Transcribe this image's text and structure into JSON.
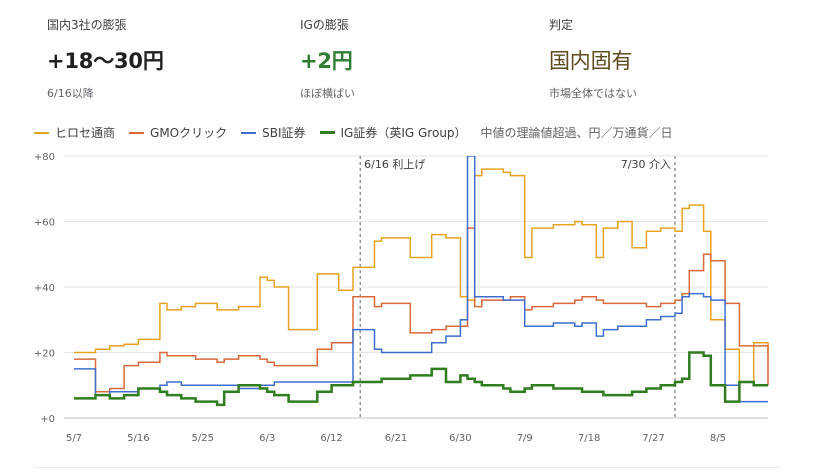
{
  "kpis": [
    {
      "label": "国内3社の膨張",
      "value": "+18〜30円",
      "sub": "6/16以降",
      "color": "#202124"
    },
    {
      "label": "IGの膨張",
      "value": "+2円",
      "sub": "ほぼ横ばい",
      "color": "#2e7d32"
    },
    {
      "label": "判定",
      "value": "国内固有",
      "sub": "市場全体ではない",
      "color": "#5d4a1f"
    }
  ],
  "legend_note": "中値の理論値超過、円／万通貨／日",
  "chart_data": {
    "type": "line",
    "x_start": "5/7",
    "x_end": "8/12",
    "xticks": [
      "5/7",
      "5/16",
      "5/25",
      "6/3",
      "6/12",
      "6/21",
      "6/30",
      "7/9",
      "7/18",
      "7/27",
      "8/5"
    ],
    "yticks": [
      "+0",
      "+20",
      "+40",
      "+60",
      "+80"
    ],
    "ylim": [
      0,
      80
    ],
    "grid": "horizontal",
    "legend_placement": "top",
    "annotations": [
      {
        "x": "6/16",
        "label": "6/16 利上げ"
      },
      {
        "x": "7/30",
        "label": "7/30 介入"
      }
    ],
    "series": [
      {
        "name": "ヒロセ通商",
        "color": "#e6a323",
        "width": 1.5,
        "x": [
          "5/7",
          "5/10",
          "5/12",
          "5/14",
          "5/16",
          "5/19",
          "5/20",
          "5/22",
          "5/24",
          "5/27",
          "5/28",
          "5/30",
          "6/2",
          "6/3",
          "6/4",
          "6/6",
          "6/10",
          "6/12",
          "6/13",
          "6/15",
          "6/18",
          "6/19",
          "6/23",
          "6/26",
          "6/28",
          "6/30",
          "7/1",
          "7/2",
          "7/3",
          "7/6",
          "7/7",
          "7/9",
          "7/10",
          "7/13",
          "7/16",
          "7/17",
          "7/19",
          "7/20",
          "7/22",
          "7/24",
          "7/26",
          "7/28",
          "7/30",
          "7/31",
          "8/1",
          "8/3",
          "8/4",
          "8/6",
          "8/8",
          "8/10",
          "8/12"
        ],
        "y": [
          20,
          21,
          22,
          22.5,
          24,
          35,
          33,
          34,
          35,
          33,
          33,
          34,
          43,
          42,
          40,
          27,
          44,
          44,
          39,
          46,
          54,
          55,
          49,
          56,
          55,
          37,
          36,
          74,
          76,
          75,
          74,
          49,
          58,
          59,
          60,
          59,
          49,
          58,
          60,
          52,
          57,
          58,
          57,
          64,
          65,
          57,
          30,
          21,
          11,
          23,
          19
        ]
      },
      {
        "name": "GMOクリック",
        "color": "#d9683a",
        "width": 1.5,
        "x": [
          "5/7",
          "5/10",
          "5/12",
          "5/14",
          "5/16",
          "5/19",
          "5/20",
          "5/22",
          "5/24",
          "5/27",
          "5/28",
          "5/30",
          "6/2",
          "6/3",
          "6/4",
          "6/6",
          "6/10",
          "6/12",
          "6/13",
          "6/15",
          "6/18",
          "6/19",
          "6/23",
          "6/26",
          "6/28",
          "6/30",
          "7/1",
          "7/2",
          "7/3",
          "7/6",
          "7/7",
          "7/9",
          "7/10",
          "7/13",
          "7/16",
          "7/17",
          "7/19",
          "7/20",
          "7/22",
          "7/24",
          "7/26",
          "7/28",
          "7/30",
          "7/31",
          "8/1",
          "8/3",
          "8/4",
          "8/6",
          "8/8",
          "8/10",
          "8/12"
        ],
        "y": [
          18,
          8,
          9,
          16,
          17,
          20,
          19,
          19,
          18,
          17,
          18,
          19,
          18,
          17,
          16,
          16,
          21,
          23,
          23,
          37,
          34,
          35,
          26,
          27,
          28,
          28,
          58,
          34,
          36,
          36,
          37,
          33,
          34,
          35,
          36,
          37,
          36,
          35,
          35,
          35,
          34,
          35,
          36,
          38,
          45,
          50,
          48,
          35,
          22,
          22,
          10
        ]
      },
      {
        "name": "SBI証券",
        "color": "#3f6ecf",
        "width": 1.5,
        "x": [
          "5/7",
          "5/10",
          "5/12",
          "5/14",
          "5/16",
          "5/19",
          "5/20",
          "5/22",
          "5/24",
          "5/27",
          "5/28",
          "5/30",
          "6/2",
          "6/3",
          "6/4",
          "6/6",
          "6/10",
          "6/12",
          "6/13",
          "6/15",
          "6/18",
          "6/19",
          "6/23",
          "6/26",
          "6/28",
          "6/30",
          "7/1",
          "7/2",
          "7/3",
          "7/6",
          "7/7",
          "7/9",
          "7/10",
          "7/13",
          "7/16",
          "7/17",
          "7/19",
          "7/20",
          "7/22",
          "7/24",
          "7/26",
          "7/28",
          "7/30",
          "7/31",
          "8/1",
          "8/3",
          "8/4",
          "8/6",
          "8/8",
          "8/10",
          "8/12"
        ],
        "y": [
          15,
          7,
          8,
          8,
          9,
          10,
          11,
          10,
          10,
          10,
          10,
          9,
          10,
          10,
          11,
          11,
          11,
          11,
          11,
          27,
          21,
          20,
          20,
          23,
          25,
          30,
          80,
          37,
          37,
          36,
          36,
          28,
          28,
          29,
          28,
          29,
          25,
          27,
          28,
          28,
          30,
          31,
          32,
          37,
          38,
          37,
          36,
          10,
          5,
          5,
          5
        ]
      },
      {
        "name": "IG証券（英IG Group）",
        "color": "#2f7d1f",
        "width": 2.5,
        "x": [
          "5/7",
          "5/10",
          "5/12",
          "5/14",
          "5/16",
          "5/19",
          "5/20",
          "5/22",
          "5/24",
          "5/27",
          "5/28",
          "5/30",
          "6/2",
          "6/3",
          "6/4",
          "6/6",
          "6/10",
          "6/12",
          "6/13",
          "6/15",
          "6/18",
          "6/19",
          "6/23",
          "6/26",
          "6/28",
          "6/30",
          "7/1",
          "7/2",
          "7/3",
          "7/6",
          "7/7",
          "7/9",
          "7/10",
          "7/13",
          "7/16",
          "7/17",
          "7/19",
          "7/20",
          "7/22",
          "7/24",
          "7/26",
          "7/28",
          "7/30",
          "7/31",
          "8/1",
          "8/3",
          "8/4",
          "8/6",
          "8/8",
          "8/10",
          "8/12"
        ],
        "y": [
          6,
          7,
          6,
          7,
          9,
          8,
          7,
          6,
          5,
          4,
          8,
          10,
          9,
          8,
          7,
          5,
          8,
          10,
          10,
          11,
          11,
          12,
          13,
          15,
          11,
          13,
          12,
          11,
          10,
          9,
          8,
          9,
          10,
          9,
          9,
          8,
          8,
          7,
          7,
          8,
          9,
          10,
          11,
          12,
          20,
          19,
          10,
          5,
          11,
          10,
          10
        ]
      }
    ]
  }
}
